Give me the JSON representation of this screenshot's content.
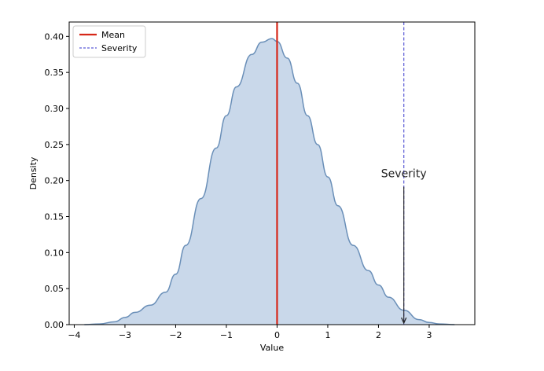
{
  "chart_data": {
    "type": "area",
    "title": "",
    "xlabel": "Value",
    "ylabel": "Density",
    "xlim": [
      -4.1,
      3.9
    ],
    "ylim": [
      0,
      0.42
    ],
    "xticks": [
      -4,
      -3,
      -2,
      -1,
      0,
      1,
      2,
      3
    ],
    "xtick_labels": [
      "−4",
      "−3",
      "−2",
      "−1",
      "0",
      "1",
      "2",
      "3"
    ],
    "yticks": [
      0,
      0.05,
      0.1,
      0.15,
      0.2,
      0.25,
      0.3,
      0.35,
      0.4
    ],
    "ytick_labels": [
      "0.00",
      "0.05",
      "0.10",
      "0.15",
      "0.20",
      "0.25",
      "0.30",
      "0.35",
      "0.40"
    ],
    "grid": false,
    "legend_position": "top-left",
    "series": [
      {
        "kind": "kde",
        "fill_color": "#c9d8ea",
        "line_color": "#6a8fb8",
        "x": [
          -3.8,
          -3.5,
          -3.2,
          -3.0,
          -2.8,
          -2.5,
          -2.2,
          -2.0,
          -1.8,
          -1.5,
          -1.2,
          -1.0,
          -0.8,
          -0.5,
          -0.3,
          -0.1,
          0.0,
          0.2,
          0.4,
          0.6,
          0.8,
          1.0,
          1.2,
          1.5,
          1.8,
          2.0,
          2.2,
          2.5,
          2.8,
          3.0,
          3.2,
          3.5
        ],
        "y": [
          0.0,
          0.001,
          0.004,
          0.01,
          0.017,
          0.027,
          0.045,
          0.07,
          0.11,
          0.175,
          0.245,
          0.29,
          0.33,
          0.375,
          0.392,
          0.397,
          0.393,
          0.37,
          0.335,
          0.29,
          0.25,
          0.205,
          0.165,
          0.11,
          0.075,
          0.055,
          0.038,
          0.02,
          0.007,
          0.003,
          0.001,
          0.0
        ]
      }
    ],
    "lines": [
      {
        "name": "Mean",
        "x": 0.0,
        "color": "#d62718",
        "style": "solid"
      },
      {
        "name": "Severity",
        "x": 2.5,
        "color": "#5b5bd6",
        "style": "dashed"
      }
    ],
    "annotation": {
      "text": "Severity",
      "text_x": 2.5,
      "text_y": 0.2,
      "arrow_to_x": 2.5,
      "arrow_to_y": 0.0
    },
    "legend": [
      {
        "label": "Mean",
        "color": "#d62718",
        "style": "solid"
      },
      {
        "label": "Severity",
        "color": "#5b5bd6",
        "style": "dashed"
      }
    ]
  }
}
